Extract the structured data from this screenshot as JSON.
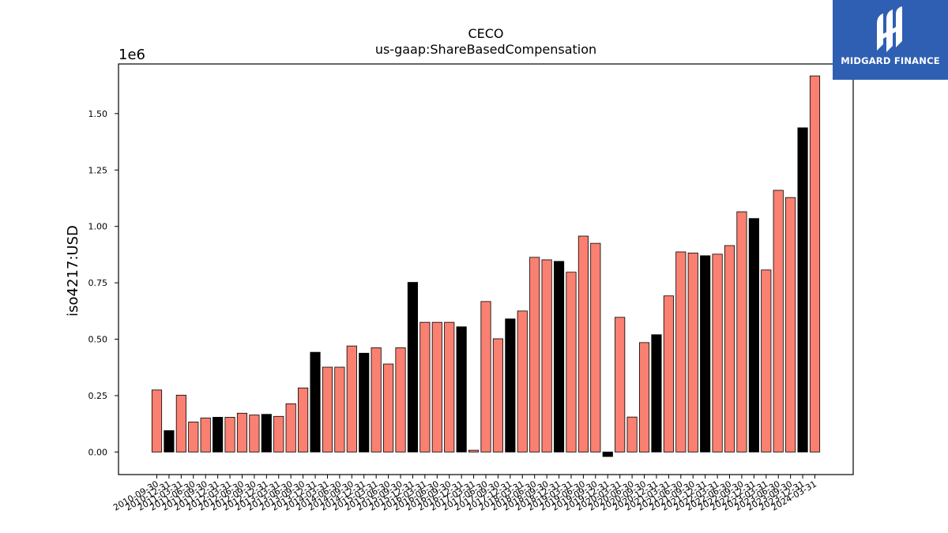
{
  "logo": {
    "name": "MIDGARD FINANCE",
    "icon": "midgard-logo-icon"
  },
  "colors": {
    "default_bar": "#fa8072",
    "highlight_bar": "#000000",
    "logo_bg": "#2f5fb3"
  },
  "chart_data": {
    "type": "bar",
    "title": "CECO",
    "subtitle": "us-gaap:ShareBasedCompensation",
    "xlabel": "",
    "ylabel": "iso4217:USD",
    "y_multiplier_label": "1e6",
    "ylim": [
      -0.1,
      1.72
    ],
    "y_ticks": [
      0.0,
      0.25,
      0.5,
      0.75,
      1.0,
      1.25,
      1.5
    ],
    "y_tick_labels": [
      "0.00",
      "0.25",
      "0.50",
      "0.75",
      "1.00",
      "1.25",
      "1.50"
    ],
    "grid": false,
    "categories": [
      "2010-09-30",
      "2010-12-31",
      "2011-03-31",
      "2011-06-30",
      "2011-09-30",
      "2011-12-31",
      "2012-03-31",
      "2012-06-30",
      "2012-09-30",
      "2012-12-31",
      "2013-03-31",
      "2013-06-30",
      "2013-09-30",
      "2013-12-31",
      "2014-03-31",
      "2014-06-30",
      "2014-09-30",
      "2014-12-31",
      "2015-03-31",
      "2015-06-30",
      "2015-09-30",
      "2015-12-31",
      "2016-03-31",
      "2016-06-30",
      "2016-09-30",
      "2016-12-31",
      "2017-03-31",
      "2017-06-30",
      "2017-09-30",
      "2017-12-31",
      "2018-03-31",
      "2018-06-30",
      "2018-09-30",
      "2018-12-31",
      "2019-03-31",
      "2019-06-30",
      "2019-09-30",
      "2019-12-31",
      "2020-03-31",
      "2020-06-30",
      "2020-09-30",
      "2020-12-31",
      "2021-03-31",
      "2021-06-30",
      "2021-09-30",
      "2021-12-31",
      "2022-03-31",
      "2022-06-30",
      "2022-09-30",
      "2022-12-31",
      "2023-03-31",
      "2023-06-30",
      "2023-09-30",
      "2023-12-31",
      "2024-03-31"
    ],
    "values": [
      0.275,
      0.095,
      0.252,
      0.133,
      0.151,
      0.154,
      0.154,
      0.172,
      0.164,
      0.167,
      0.158,
      0.214,
      0.284,
      0.442,
      0.376,
      0.376,
      0.47,
      0.438,
      0.462,
      0.39,
      0.462,
      0.752,
      0.575,
      0.575,
      0.575,
      0.555,
      0.008,
      0.667,
      0.502,
      0.59,
      0.625,
      0.863,
      0.852,
      0.845,
      0.797,
      0.957,
      0.925,
      -0.02,
      0.597,
      0.155,
      0.485,
      0.52,
      0.692,
      0.887,
      0.882,
      0.87,
      0.877,
      0.915,
      1.065,
      1.035,
      0.807,
      1.16,
      1.128,
      1.437,
      1.667
    ],
    "highlight": [
      false,
      true,
      false,
      false,
      false,
      true,
      false,
      false,
      false,
      true,
      false,
      false,
      false,
      true,
      false,
      false,
      false,
      true,
      false,
      false,
      false,
      true,
      false,
      false,
      false,
      true,
      false,
      false,
      false,
      true,
      false,
      false,
      false,
      true,
      false,
      false,
      false,
      true,
      false,
      false,
      false,
      true,
      false,
      false,
      false,
      true,
      false,
      false,
      false,
      true,
      false,
      false,
      false,
      true,
      false
    ]
  }
}
